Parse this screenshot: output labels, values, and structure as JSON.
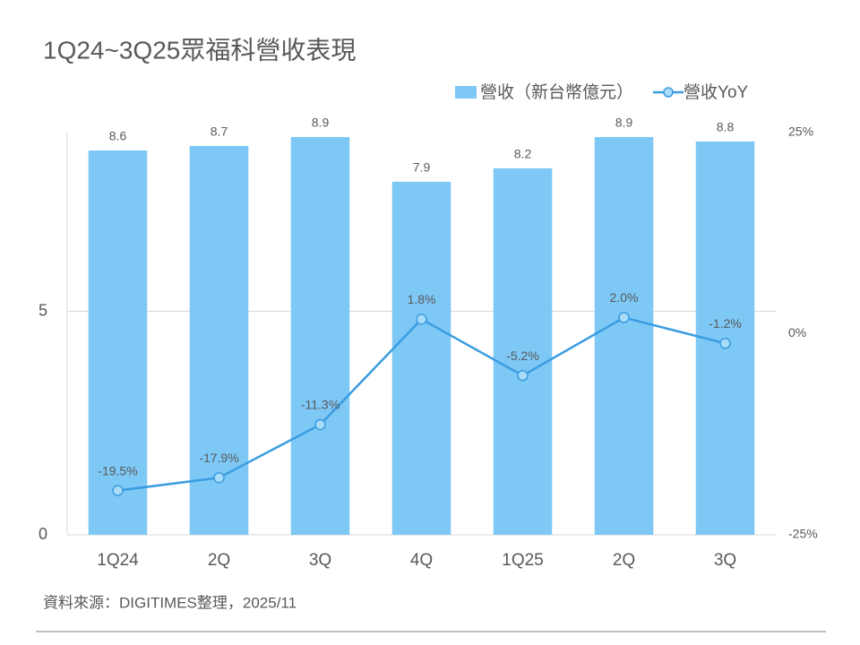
{
  "chart_data": {
    "type": "combo",
    "title": "1Q24~3Q25眾福科營收表現",
    "categories": [
      "1Q24",
      "2Q",
      "3Q",
      "4Q",
      "1Q25",
      "2Q",
      "3Q"
    ],
    "series": [
      {
        "name": "營收（新台幣億元）",
        "type": "bar",
        "color": "#7ec8f6",
        "values": [
          8.6,
          8.7,
          8.9,
          7.9,
          8.2,
          8.9,
          8.8
        ]
      },
      {
        "name": "營收YoY",
        "type": "line",
        "axis": "y2",
        "color": "#3a9ce0",
        "values": [
          -19.5,
          -17.9,
          -11.3,
          1.8,
          -5.2,
          2.0,
          -1.2
        ],
        "value_labels": [
          "-19.5%",
          "-17.9%",
          "-11.3%",
          "1.8%",
          "-5.2%",
          "2.0%",
          "-1.2%"
        ]
      }
    ],
    "ylim": [
      0,
      9
    ],
    "yticks": [
      0,
      5
    ],
    "y2lim": [
      -25,
      25
    ],
    "y2ticks": [
      {
        "value": -25,
        "label": "-25%"
      },
      {
        "value": 0,
        "label": "0%"
      },
      {
        "value": 25,
        "label": "25%"
      }
    ],
    "grid": true,
    "legend": "top-right",
    "source": "資料來源：DIGITIMES整理，2025/11"
  }
}
